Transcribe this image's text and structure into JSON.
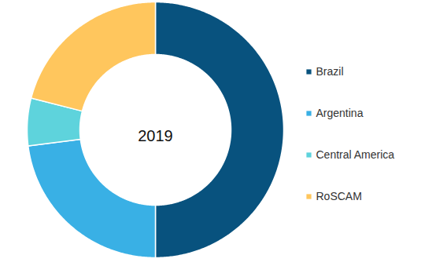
{
  "chart_data": {
    "type": "donut",
    "title": "2019",
    "categories": [
      "Brazil",
      "Argentina",
      "Central America",
      "RoSCAM"
    ],
    "values": [
      50,
      23,
      6,
      21
    ],
    "colors": [
      "#08527e",
      "#39b0e5",
      "#5ed3dc",
      "#ffc65d"
    ],
    "legend": "right",
    "data_labels": false
  }
}
